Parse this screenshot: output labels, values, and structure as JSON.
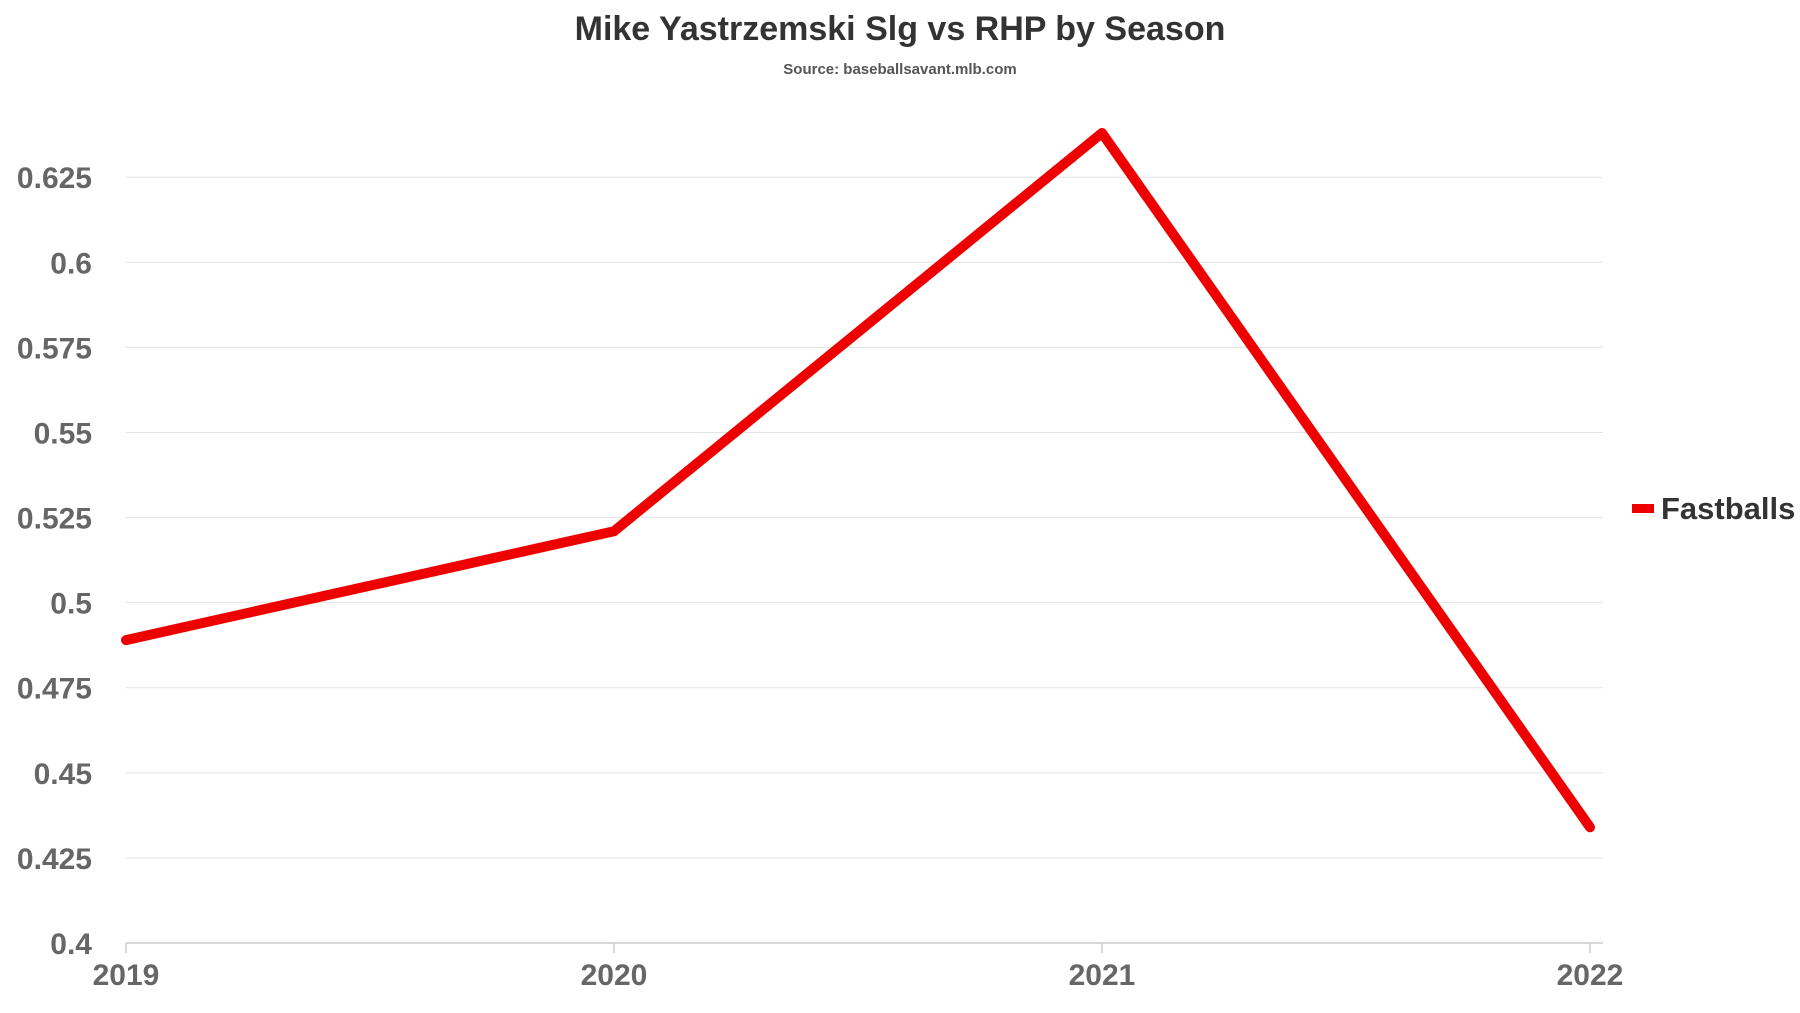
{
  "chart_data": {
    "type": "line",
    "title": "Mike Yastrzemski Slg vs RHP by Season",
    "subtitle": "Source: baseballsavant.mlb.com",
    "xlabel": "",
    "ylabel": "",
    "categories": [
      "2019",
      "2020",
      "2021",
      "2022"
    ],
    "series": [
      {
        "name": "Fastballs",
        "values": [
          0.489,
          0.521,
          0.638,
          0.434
        ],
        "color": "#ee0000"
      }
    ],
    "ylim": [
      0.4,
      0.638
    ],
    "yticks": [
      "0.4",
      "0.425",
      "0.45",
      "0.475",
      "0.5",
      "0.525",
      "0.55",
      "0.575",
      "0.6",
      "0.625"
    ],
    "grid": true,
    "legend_position": "right",
    "colors": {
      "grid": "#e3e3e3",
      "axis": "#cccccc",
      "tick_text": "#666666",
      "title_text": "#333333"
    }
  }
}
